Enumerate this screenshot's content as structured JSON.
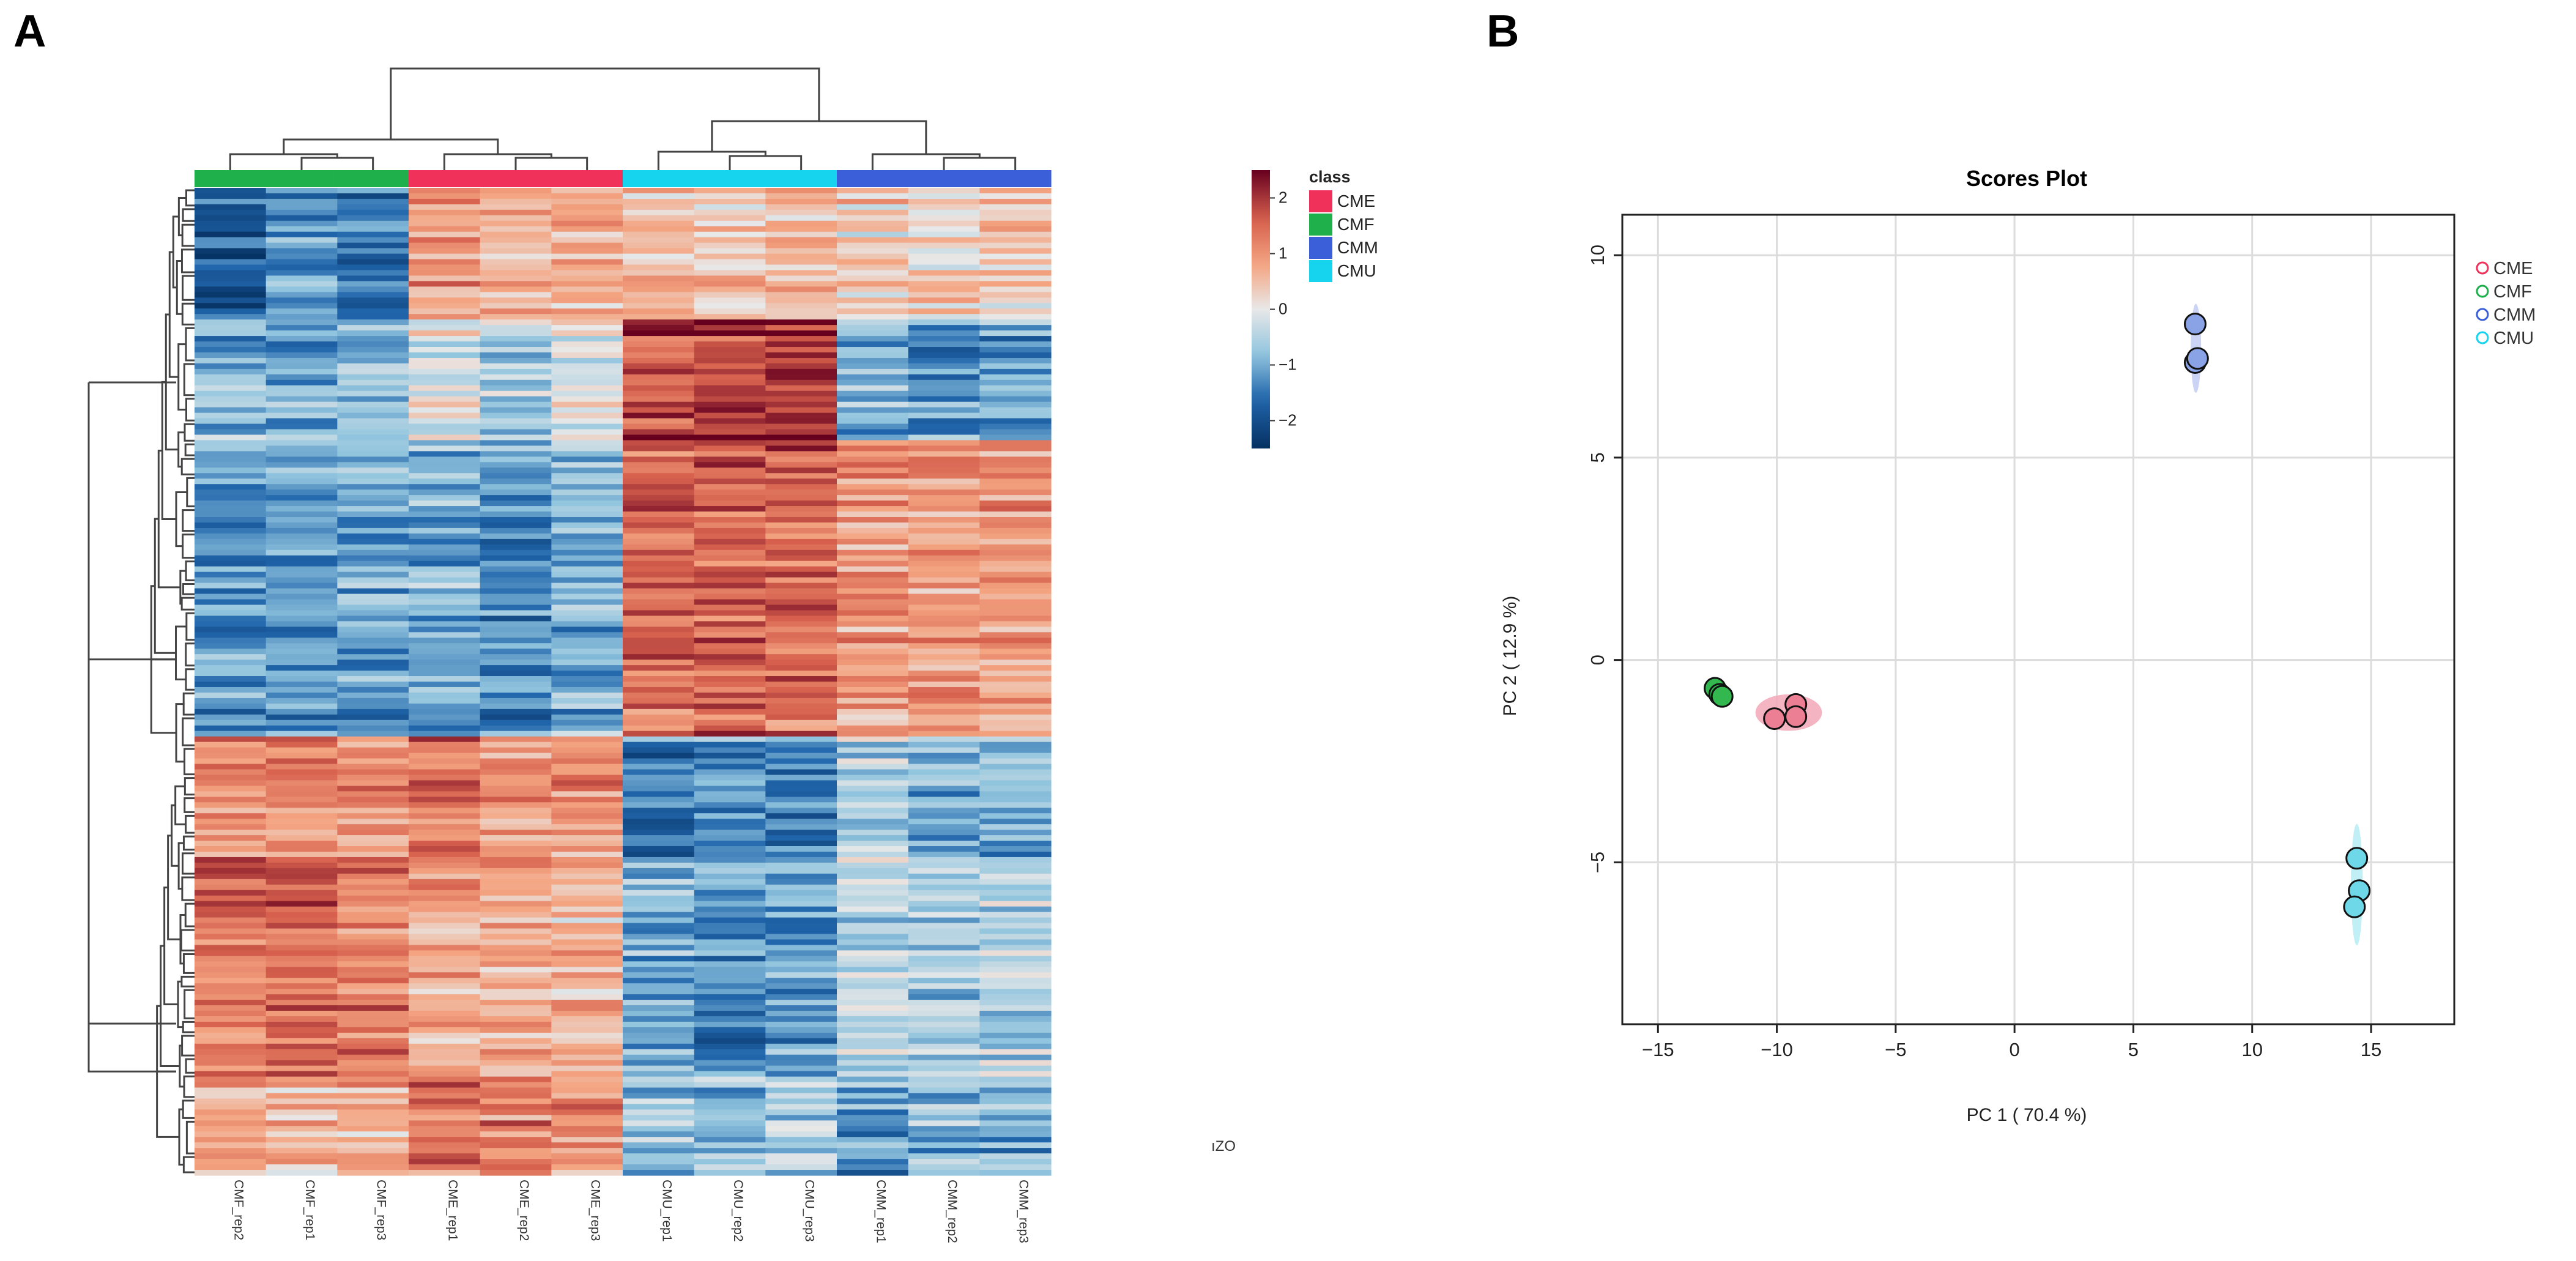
{
  "panels": {
    "a_label": "A",
    "b_label": "B"
  },
  "stray_text": "ıZO",
  "chart_data": [
    {
      "type": "heatmap",
      "title": "",
      "columns": [
        "CMF_rep2",
        "CMF_rep1",
        "CMF_rep3",
        "CME_rep1",
        "CME_rep2",
        "CME_rep3",
        "CMU_rep1",
        "CMU_rep2",
        "CMU_rep3",
        "CMM_rep1",
        "CMM_rep2",
        "CMM_rep3"
      ],
      "column_classes": [
        "CMF",
        "CMF",
        "CMF",
        "CME",
        "CME",
        "CME",
        "CMU",
        "CMU",
        "CMU",
        "CMM",
        "CMM",
        "CMM"
      ],
      "row_count": 180,
      "value_range": [
        -2.5,
        2.5
      ],
      "row_blocks": [
        {
          "name": "b1",
          "weight": 24,
          "means": [
            -1.8,
            -1.3,
            -1.6,
            0.9,
            0.6,
            0.7,
            0.5,
            0.4,
            0.6,
            0.3,
            0.3,
            0.4
          ]
        },
        {
          "name": "b2",
          "weight": 22,
          "means": [
            -0.9,
            -1.1,
            -0.8,
            -0.2,
            -0.6,
            -0.1,
            1.8,
            1.9,
            1.9,
            -0.9,
            -1.3,
            -1.1
          ]
        },
        {
          "name": "b3",
          "weight": 54,
          "means": [
            -1.1,
            -1.2,
            -1.0,
            -1.0,
            -1.2,
            -0.9,
            1.5,
            1.6,
            1.5,
            1.0,
            1.0,
            1.0
          ]
        },
        {
          "name": "b4",
          "weight": 22,
          "means": [
            1.1,
            1.2,
            1.0,
            1.3,
            1.0,
            1.0,
            -1.5,
            -1.3,
            -1.4,
            -0.6,
            -1.0,
            -0.9
          ]
        },
        {
          "name": "b5",
          "weight": 40,
          "means": [
            1.3,
            1.4,
            1.2,
            0.8,
            0.7,
            0.6,
            -1.0,
            -1.3,
            -1.2,
            -0.4,
            -0.6,
            -0.5
          ]
        },
        {
          "name": "b6",
          "weight": 18,
          "means": [
            0.8,
            0.5,
            0.6,
            1.4,
            1.2,
            1.0,
            -0.6,
            -0.8,
            -0.4,
            -1.2,
            -0.9,
            -1.0
          ]
        }
      ],
      "colorbar": {
        "ticks": [
          2,
          1,
          0,
          -1,
          -2
        ],
        "tick_labels": [
          "2",
          "1",
          "0",
          "−1",
          "−2"
        ]
      },
      "legend": {
        "title": "class",
        "entries": [
          {
            "label": "CME",
            "color": "#f0325a"
          },
          {
            "label": "CMF",
            "color": "#1faf4b"
          },
          {
            "label": "CMM",
            "color": "#3a5fd9"
          },
          {
            "label": "CMU",
            "color": "#16d3ee"
          }
        ]
      },
      "class_colors": {
        "CME": "#f0325a",
        "CMF": "#1faf4b",
        "CMM": "#3a5fd9",
        "CMU": "#16d3ee"
      }
    },
    {
      "type": "scatter",
      "title": "Scores Plot",
      "xlabel": "PC 1 ( 70.4 %)",
      "ylabel": "PC 2 ( 12.9 %)",
      "xlim": [
        -16.5,
        18.5
      ],
      "ylim": [
        -9,
        11
      ],
      "xticks": [
        -15,
        -10,
        -5,
        0,
        5,
        10,
        15
      ],
      "xtick_labels": [
        "−15",
        "−10",
        "−5",
        "0",
        "5",
        "10",
        "15"
      ],
      "yticks": [
        -5,
        0,
        5,
        10
      ],
      "ytick_labels": [
        "−5",
        "0",
        "5",
        "10"
      ],
      "grid": true,
      "legend_position": "right",
      "series": [
        {
          "name": "CME",
          "color": "#f0325a",
          "fill": "#ec7f94",
          "points": [
            [
              -10.1,
              -1.45
            ],
            [
              -9.2,
              -1.1
            ],
            [
              -9.2,
              -1.4
            ]
          ]
        },
        {
          "name": "CMF",
          "color": "#1faf4b",
          "fill": "#33b84f",
          "points": [
            [
              -12.6,
              -0.7
            ],
            [
              -12.4,
              -0.85
            ],
            [
              -12.3,
              -0.9
            ]
          ]
        },
        {
          "name": "CMM",
          "color": "#3a5fd9",
          "fill": "#8aa2e6",
          "points": [
            [
              7.6,
              8.3
            ],
            [
              7.6,
              7.35
            ],
            [
              7.7,
              7.45
            ]
          ]
        },
        {
          "name": "CMU",
          "color": "#16d3ee",
          "fill": "#6fd8e8",
          "points": [
            [
              14.4,
              -4.9
            ],
            [
              14.5,
              -5.7
            ],
            [
              14.3,
              -6.1
            ]
          ]
        }
      ],
      "ellipses": [
        {
          "name": "CME",
          "center": [
            -9.5,
            -1.3
          ],
          "radii": [
            1.4,
            0.45
          ],
          "color": "#f3a7b6"
        },
        {
          "name": "CMF",
          "center": [
            -12.45,
            -0.82
          ],
          "radii": [
            0.35,
            0.3
          ],
          "color": "#a9dcb4"
        },
        {
          "name": "CMM",
          "center": [
            7.63,
            7.7
          ],
          "radii": [
            0.22,
            1.1
          ],
          "color": "#c2cdf2"
        },
        {
          "name": "CMU",
          "center": [
            14.4,
            -5.55
          ],
          "radii": [
            0.25,
            1.5
          ],
          "color": "#b6ecf5"
        }
      ]
    }
  ]
}
